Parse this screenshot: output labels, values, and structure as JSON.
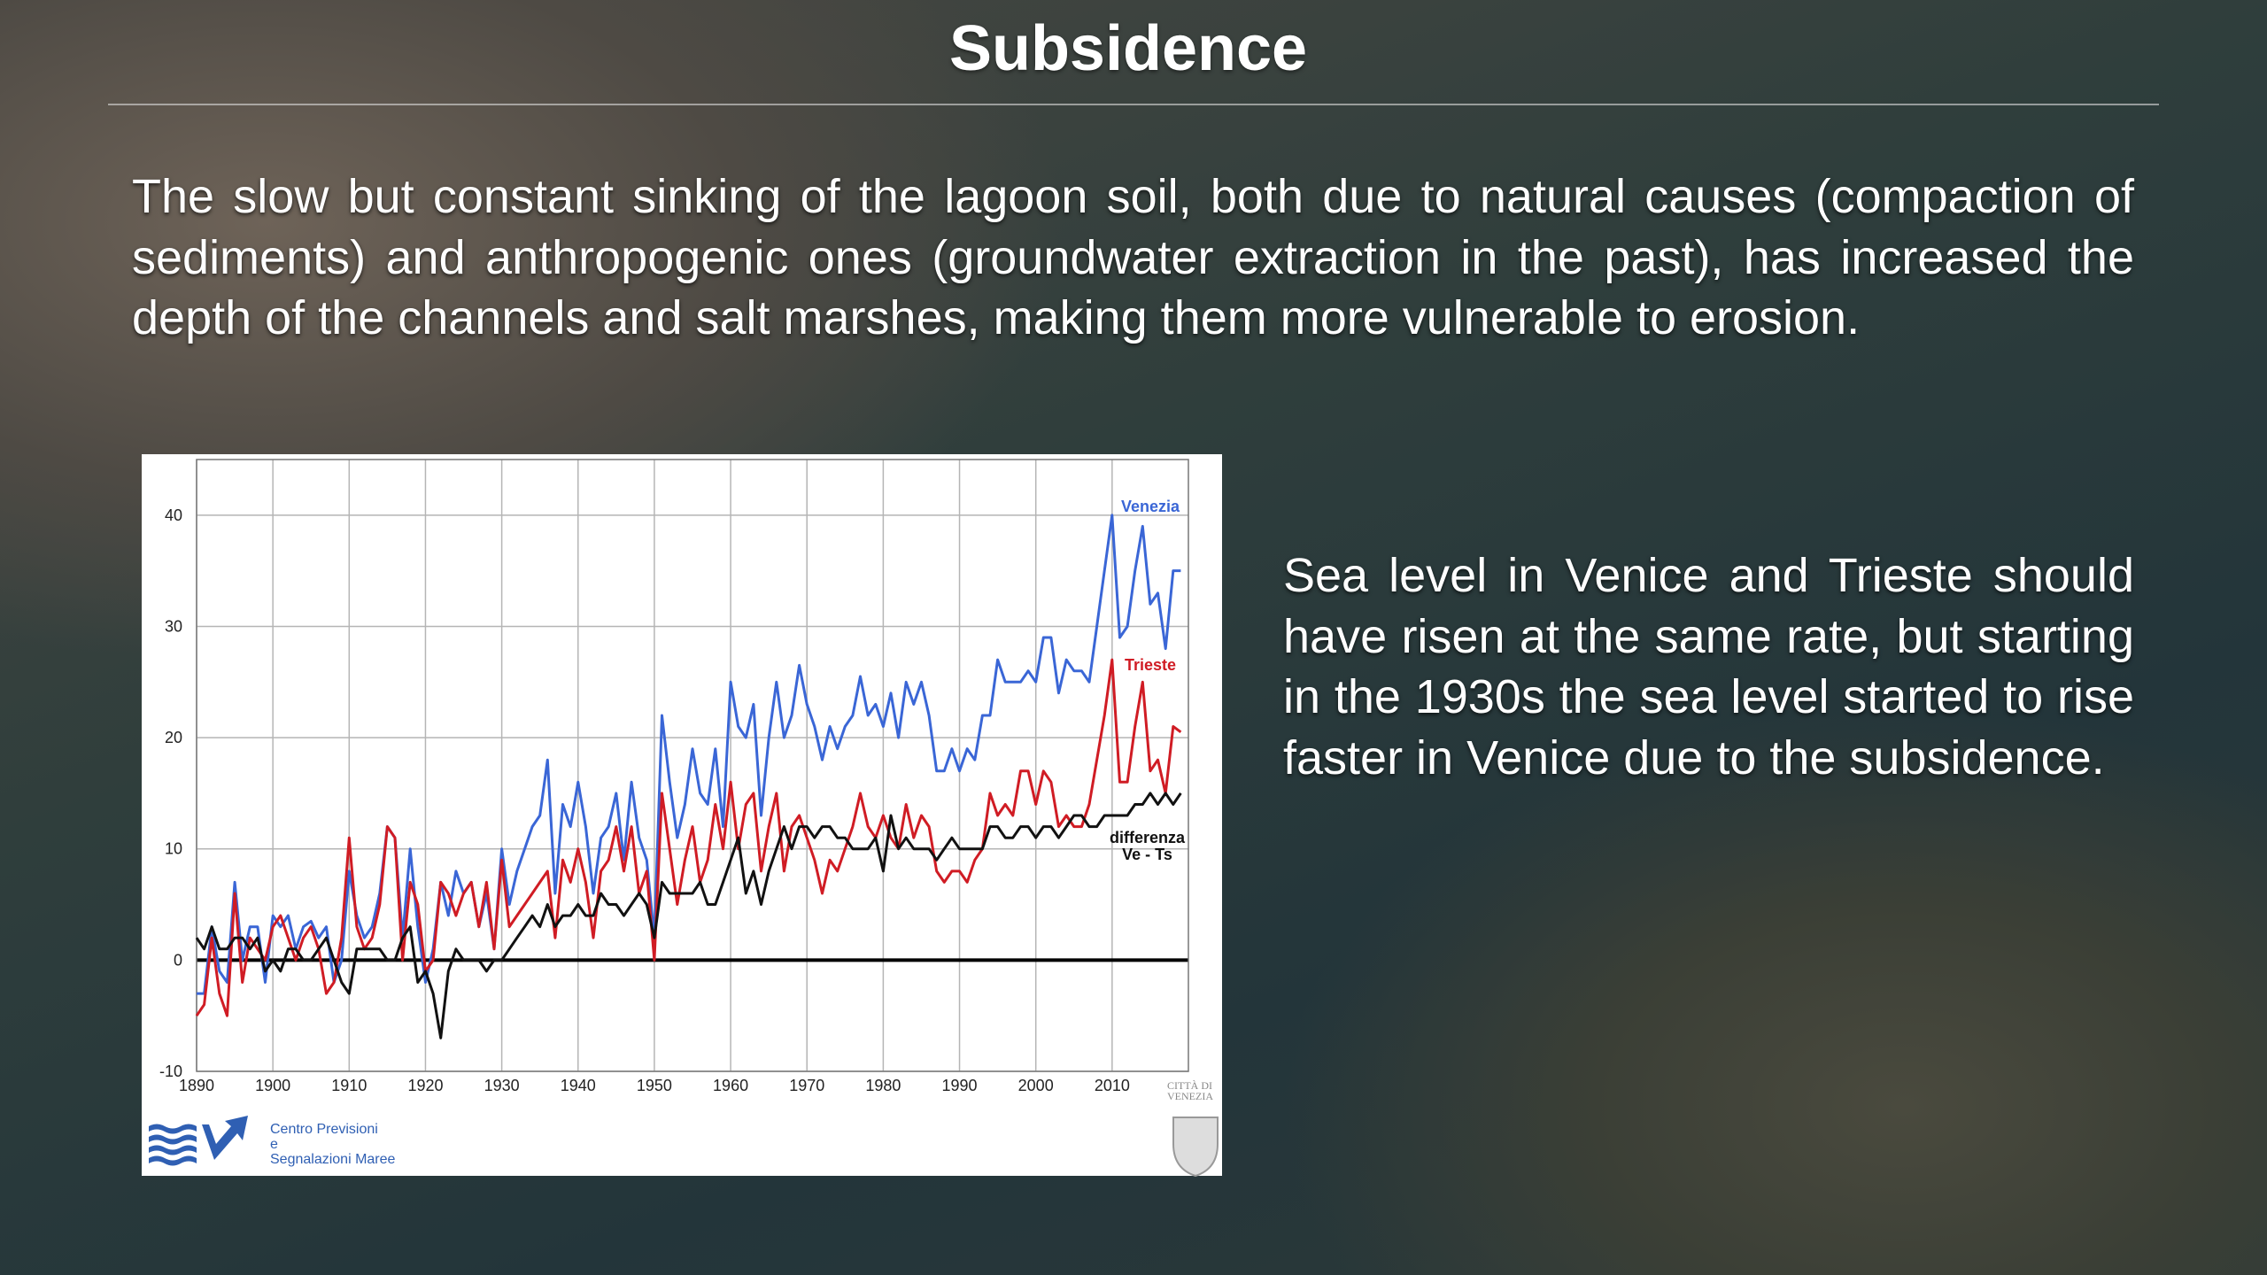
{
  "title": "Subsidence",
  "paragraphs": [
    "The slow but constant sinking of the lagoon soil, both due to natural causes (compaction of sediments) and anthropogenic ones (groundwater extraction in the past), has increased the depth of the channels and salt marshes, making them more vulnerable to erosion.",
    "Sea level in Venice and Trieste should have risen at the same rate, but starting in the 1930s the sea level started to rise faster in Venice due to the subsidence."
  ],
  "chart_data": {
    "type": "line",
    "x": [
      1890,
      1891,
      1892,
      1893,
      1894,
      1895,
      1896,
      1897,
      1898,
      1899,
      1900,
      1901,
      1902,
      1903,
      1904,
      1905,
      1906,
      1907,
      1908,
      1909,
      1910,
      1911,
      1912,
      1913,
      1914,
      1915,
      1916,
      1917,
      1918,
      1919,
      1920,
      1921,
      1922,
      1923,
      1924,
      1925,
      1926,
      1927,
      1928,
      1929,
      1930,
      1931,
      1932,
      1933,
      1934,
      1935,
      1936,
      1937,
      1938,
      1939,
      1940,
      1941,
      1942,
      1943,
      1944,
      1945,
      1946,
      1947,
      1948,
      1949,
      1950,
      1951,
      1952,
      1953,
      1954,
      1955,
      1956,
      1957,
      1958,
      1959,
      1960,
      1961,
      1962,
      1963,
      1964,
      1965,
      1966,
      1967,
      1968,
      1969,
      1970,
      1971,
      1972,
      1973,
      1974,
      1975,
      1976,
      1977,
      1978,
      1979,
      1980,
      1981,
      1982,
      1983,
      1984,
      1985,
      1986,
      1987,
      1988,
      1989,
      1990,
      1991,
      1992,
      1993,
      1994,
      1995,
      1996,
      1997,
      1998,
      1999,
      2000,
      2001,
      2002,
      2003,
      2004,
      2005,
      2006,
      2007,
      2008,
      2009,
      2010,
      2011,
      2012,
      2013,
      2014,
      2015,
      2016,
      2017,
      2018,
      2019
    ],
    "series": [
      {
        "name": "Venezia",
        "color": "#3a66d6",
        "values": [
          -3,
          -3,
          3,
          -1,
          -2,
          7,
          0,
          3,
          3,
          -2,
          4,
          3,
          4,
          1,
          3,
          3.5,
          2,
          3,
          -2,
          0,
          8,
          4,
          2,
          3,
          6,
          12,
          11,
          2,
          10,
          3,
          -2,
          1,
          7,
          4,
          8,
          6,
          7,
          3,
          6,
          1,
          10,
          5,
          8,
          10,
          12,
          13,
          18,
          6,
          14,
          12,
          16,
          12,
          6,
          11,
          12,
          15,
          9,
          16,
          11,
          9,
          2,
          22,
          16,
          11,
          14,
          19,
          15,
          14,
          19,
          12,
          25,
          21,
          20,
          23,
          13,
          20,
          25,
          20,
          22,
          26.5,
          23,
          21,
          18,
          21,
          19,
          21,
          22,
          25.5,
          22,
          23,
          21,
          24,
          20,
          25,
          23,
          25,
          22,
          17,
          17,
          19,
          17,
          19,
          18,
          22,
          22,
          27,
          25,
          25,
          25,
          26,
          25,
          29,
          29,
          24,
          27,
          26,
          26,
          25,
          30,
          35,
          40,
          29,
          30,
          35,
          39,
          32,
          33,
          28,
          35,
          35
        ]
      },
      {
        "name": "Trieste",
        "color": "#d01c24",
        "values": [
          -5,
          -4,
          2,
          -3,
          -5,
          6,
          -2,
          2,
          1,
          0,
          3,
          4,
          2,
          0,
          2,
          3,
          1,
          -3,
          -2,
          2,
          11,
          3,
          1,
          2,
          5,
          12,
          11,
          0,
          7,
          5,
          -1,
          0,
          7,
          6,
          4,
          6,
          7,
          3,
          7,
          1,
          9,
          3,
          4,
          5,
          6,
          7,
          8,
          2,
          9,
          7,
          10,
          7,
          2,
          8,
          9,
          12,
          8,
          12,
          6,
          8,
          0,
          15,
          10,
          5,
          9,
          12,
          7,
          9,
          14,
          10,
          16,
          10,
          14,
          15,
          8,
          12,
          15,
          8,
          12,
          13,
          11,
          9,
          6,
          9,
          8,
          10,
          12,
          15,
          12,
          11,
          13,
          11,
          10,
          14,
          11,
          13,
          12,
          8,
          7,
          8,
          8,
          7,
          9,
          10,
          15,
          13,
          14,
          13,
          17,
          17,
          14,
          17,
          16,
          12,
          13,
          12,
          12,
          14,
          18,
          22,
          27,
          16,
          16,
          21,
          25,
          17,
          18,
          15,
          21,
          20.5
        ]
      },
      {
        "name": "differenza Ve - Ts",
        "color": "#111111",
        "values": [
          2,
          1,
          3,
          1,
          1,
          2,
          2,
          1,
          2,
          -1,
          0,
          -1,
          1,
          1,
          0,
          0,
          1,
          2,
          0,
          -2,
          -3,
          1,
          1,
          1,
          1,
          0,
          0,
          2,
          3,
          -2,
          -1,
          -3,
          -7,
          -1,
          1,
          0,
          0,
          0,
          -1,
          0,
          0,
          1,
          2,
          3,
          4,
          3,
          5,
          3,
          4,
          4,
          5,
          4,
          4,
          6,
          5,
          5,
          4,
          5,
          6,
          5,
          2,
          7,
          6,
          6,
          6,
          6,
          7,
          5,
          5,
          7,
          9,
          11,
          6,
          8,
          5,
          8,
          10,
          12,
          10,
          12,
          12,
          11,
          12,
          12,
          11,
          11,
          10,
          10,
          10,
          11,
          8,
          13,
          10,
          11,
          10,
          10,
          10,
          9,
          10,
          11,
          10,
          10,
          10,
          10,
          12,
          12,
          11,
          11,
          12,
          12,
          11,
          12,
          12,
          11,
          12,
          13,
          13,
          12,
          12,
          13,
          13,
          13,
          13,
          14,
          14,
          15,
          14,
          15,
          14,
          15
        ]
      }
    ],
    "xlim": [
      1890,
      2020
    ],
    "xticks": [
      1890,
      1900,
      1910,
      1920,
      1930,
      1940,
      1950,
      1960,
      1970,
      1980,
      1990,
      2000,
      2010
    ],
    "ylim": [
      -10,
      45
    ],
    "yticks": [
      -10,
      0,
      10,
      20,
      30,
      40
    ],
    "grid": true
  },
  "logo": {
    "lines": [
      "Centro Previsioni",
      "e",
      "Segnalazioni Maree"
    ],
    "crest": "CITTÀ DI VENEZIA"
  }
}
